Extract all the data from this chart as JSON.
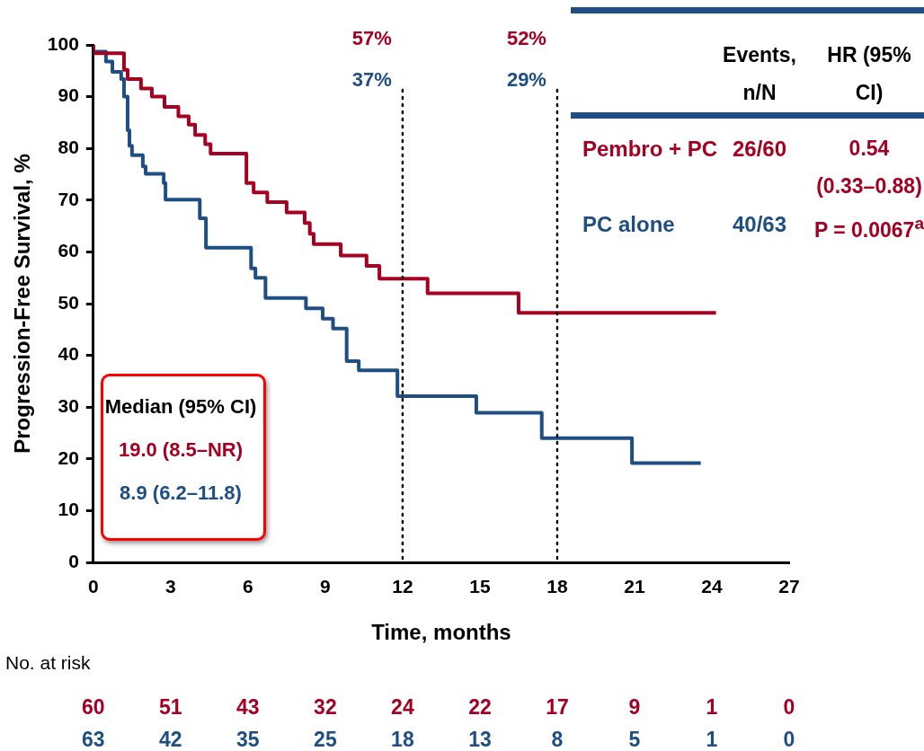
{
  "chart_data": {
    "type": "step",
    "xlabel": "Time, months",
    "ylabel": "Progression-Free Survival, %",
    "xlim": [
      0,
      27
    ],
    "xticks": [
      0,
      3,
      6,
      9,
      12,
      15,
      18,
      21,
      24,
      27
    ],
    "ylim": [
      0,
      100
    ],
    "yticks": [
      0,
      10,
      20,
      30,
      40,
      50,
      60,
      70,
      80,
      90,
      100
    ],
    "grid": false,
    "legend": false,
    "marker": "none",
    "line_style": "solid",
    "series": [
      {
        "name": "Pembro + PC",
        "color": "#a50021",
        "x": [
          0,
          1.19,
          1.33,
          1.85,
          2.27,
          2.76,
          3.3,
          3.7,
          3.95,
          4.34,
          4.55,
          5.94,
          6.22,
          6.75,
          7.5,
          8.2,
          8.4,
          8.55,
          9.6,
          10.6,
          11.1,
          12.97,
          16.5,
          18.9,
          24.16
        ],
        "values": [
          100,
          98.4,
          95.2,
          93.4,
          91.6,
          90,
          88,
          86.2,
          84.6,
          82.6,
          80.8,
          79,
          73.3,
          71.5,
          69.6,
          67.6,
          65.6,
          63.5,
          61.5,
          59.3,
          57.3,
          54.8,
          52,
          48.2,
          48.2
        ]
      },
      {
        "name": "PC alone",
        "color": "#1f4e82",
        "x": [
          0,
          0.49,
          0.74,
          1.08,
          1.19,
          1.33,
          1.4,
          1.5,
          1.92,
          2.03,
          2.73,
          2.8,
          4.13,
          4.37,
          6.12,
          6.29,
          6.68,
          8.25,
          8.9,
          9.3,
          9.83,
          10.3,
          11.8,
          14.86,
          17.4,
          20.9,
          21.2,
          23.57
        ],
        "values": [
          100,
          98.7,
          96.8,
          94.8,
          93.4,
          90,
          83.5,
          80.5,
          78.7,
          76.5,
          75.1,
          73.3,
          70.1,
          66.5,
          60.8,
          56.8,
          55,
          51.1,
          49.1,
          47.1,
          45.2,
          38.9,
          37.1,
          32.1,
          28.9,
          24,
          19.2,
          19.2
        ]
      }
    ],
    "ref_lines": [
      {
        "axis": "x",
        "value": 12,
        "line_style": "dotted",
        "color": "#000000"
      },
      {
        "axis": "x",
        "value": 18,
        "line_style": "dotted",
        "color": "#000000"
      }
    ],
    "annotations": [
      "57%",
      "37%",
      "52%",
      "29%",
      "Median (95% CI)",
      "19.0 (8.5–NR)",
      "8.9 (6.2–11.8)",
      "Events, n/N",
      "HR (95% CI)",
      "26/60",
      "40/63",
      "0.54 (0.33–0.88)",
      "P = 0.0067$^{a}$",
      "No. at risk",
      "60",
      "51",
      "43",
      "32",
      "24",
      "22",
      "17",
      "9",
      "1",
      "0",
      "63",
      "42",
      "35",
      "25",
      "18",
      "13",
      "8",
      "5",
      "1",
      "0"
    ]
  }
}
